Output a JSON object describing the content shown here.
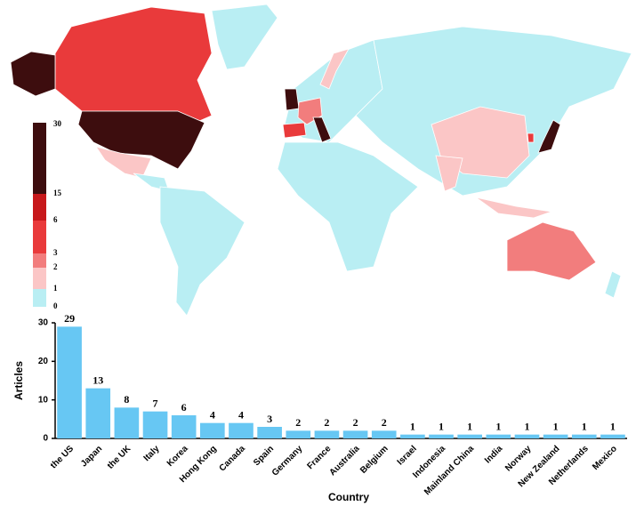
{
  "chart_data": [
    {
      "type": "choropleth",
      "legend_ticks": [
        0,
        1,
        2,
        3,
        6,
        15,
        30
      ],
      "colors": [
        "#b9eef3",
        "#fbc6c6",
        "#f27d7d",
        "#e93a3b",
        "#c7181b",
        "#3d0d0e"
      ]
    },
    {
      "type": "bar",
      "x_label": "Country",
      "y_label": "Articles",
      "categories": [
        "the US",
        "Japan",
        "the UK",
        "Italy",
        "Korea",
        "Hong Kong",
        "Canada",
        "Spain",
        "Germany",
        "France",
        "Australia",
        "Belgium",
        "Israel",
        "Indonesia",
        "Mainland China",
        "India",
        "Norway",
        "New Zealand",
        "Netherlands",
        "Mexico"
      ],
      "values": [
        29,
        13,
        8,
        7,
        6,
        4,
        4,
        3,
        2,
        2,
        2,
        2,
        1,
        1,
        1,
        1,
        1,
        1,
        1,
        1
      ],
      "color": "#67c7f3",
      "ylim": [
        0,
        30
      ],
      "yticks": [
        0,
        10,
        20,
        30
      ]
    }
  ]
}
